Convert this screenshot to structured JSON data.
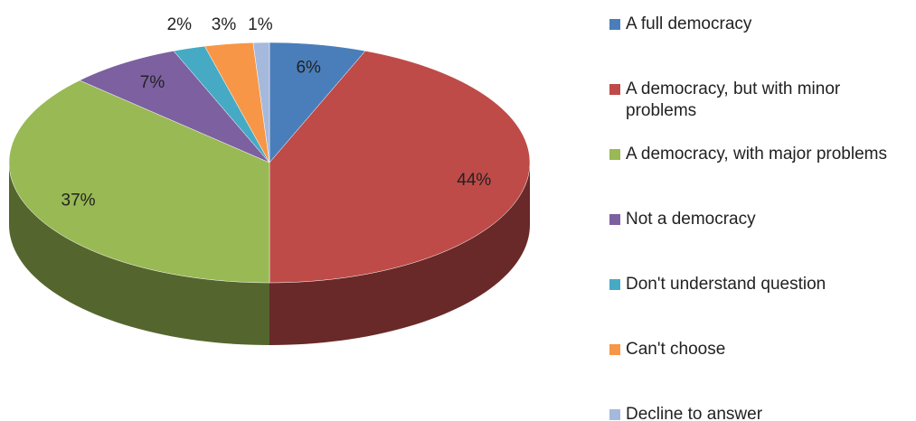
{
  "chart_data": {
    "type": "pie",
    "categories": [
      "A full democracy",
      "A democracy, but with minor problems",
      "A democracy, with major problems",
      "Not a democracy",
      "Don't understand question",
      "Can't choose",
      "Decline to answer"
    ],
    "values": [
      6,
      44,
      37,
      7,
      2,
      3,
      1
    ],
    "value_labels": [
      "6%",
      "44%",
      "37%",
      "7%",
      "2%",
      "3%",
      "1%"
    ],
    "colors": [
      "#4a7ebb",
      "#be4b48",
      "#98b954",
      "#7d60a0",
      "#46aac5",
      "#f79646",
      "#a5b9dc"
    ],
    "legend": "right"
  }
}
